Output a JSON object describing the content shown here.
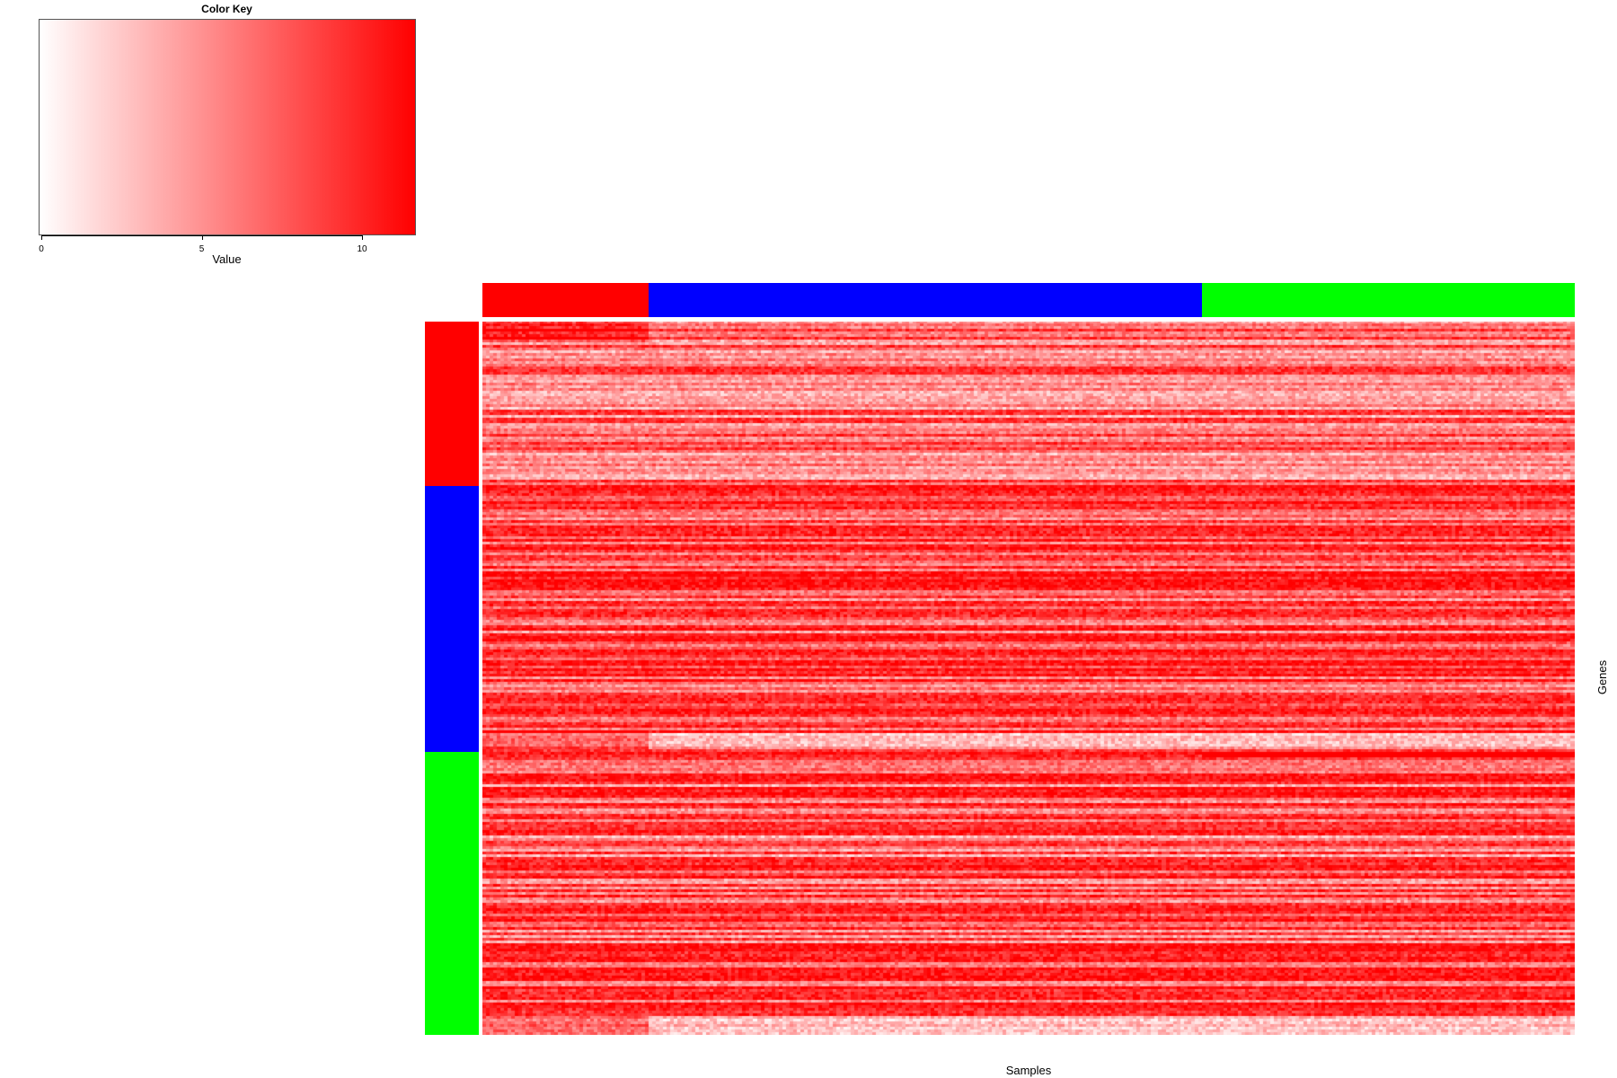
{
  "chart_data": {
    "type": "heatmap",
    "title": "",
    "xlabel": "Samples",
    "ylabel": "Genes",
    "color_key": {
      "title": "Color Key",
      "xlabel": "Value",
      "range": [
        0,
        11.7
      ],
      "ticks": [
        0,
        5,
        10
      ],
      "tick_labels": [
        "0",
        "5",
        "10"
      ],
      "low_color": "#ffffff",
      "high_color": "#ff0000"
    },
    "column_groups": [
      {
        "color": "#ff0000",
        "n_samples": 46
      },
      {
        "color": "#0000ff",
        "n_samples": 153
      },
      {
        "color": "#00ff00",
        "n_samples": 103
      }
    ],
    "row_groups": [
      {
        "color": "#ff0000",
        "n_genes": 61
      },
      {
        "color": "#0000ff",
        "n_genes": 99
      },
      {
        "color": "#00ff00",
        "n_genes": 105
      }
    ],
    "grid": false
  }
}
